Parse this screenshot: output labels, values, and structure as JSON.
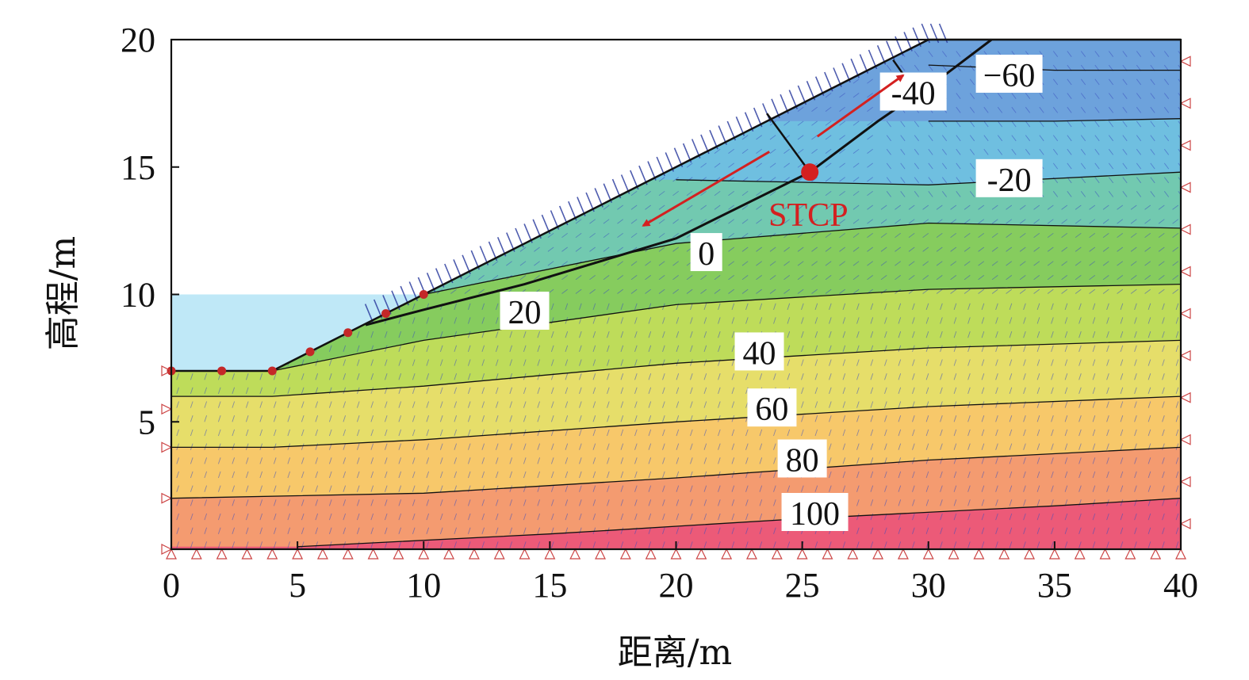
{
  "chart_data": {
    "type": "contour",
    "xlabel": "距离/m",
    "ylabel": "高程/m",
    "xlim": [
      0,
      40
    ],
    "ylim": [
      0,
      20
    ],
    "xticks": [
      0,
      5,
      10,
      15,
      20,
      25,
      30,
      35,
      40
    ],
    "yticks": [
      5,
      10,
      15,
      20
    ],
    "water_level": 10,
    "slope_surface": [
      [
        0,
        7
      ],
      [
        4,
        7
      ],
      [
        10,
        10
      ],
      [
        30,
        20
      ],
      [
        40,
        20
      ]
    ],
    "slip_surface": [
      [
        7.7,
        8.8
      ],
      [
        10,
        9.4
      ],
      [
        14,
        10.4
      ],
      [
        20,
        12.2
      ],
      [
        25.3,
        14.8
      ],
      [
        28,
        16.8
      ],
      [
        30.5,
        18.5
      ],
      [
        32.5,
        20
      ]
    ],
    "slices": [
      [
        [
          23.6,
          17.1
        ],
        [
          25.3,
          14.8
        ]
      ],
      [
        [
          28.6,
          19.2
        ],
        [
          29.6,
          17.8
        ]
      ]
    ],
    "nodes": [
      [
        0,
        7
      ],
      [
        2,
        7
      ],
      [
        4,
        7
      ],
      [
        5.5,
        7.75
      ],
      [
        7,
        8.5
      ],
      [
        8.5,
        9.25
      ],
      [
        10,
        10
      ]
    ],
    "contour_bands": [
      {
        "value": 100,
        "color": "#ec5a78"
      },
      {
        "value": 80,
        "color": "#f49b70"
      },
      {
        "value": 60,
        "color": "#f7c86a"
      },
      {
        "value": 40,
        "color": "#e6de6a"
      },
      {
        "value": 20,
        "color": "#bedc5a"
      },
      {
        "value": 0,
        "color": "#86cc5e"
      },
      {
        "value": -20,
        "color": "#72c9b0"
      },
      {
        "value": -40,
        "color": "#6fbfe0"
      },
      {
        "value": -60,
        "color": "#6da2dc"
      }
    ],
    "contour_lines": [
      {
        "label": "100",
        "points": [
          [
            5,
            0.1
          ],
          [
            15,
            0.6
          ],
          [
            25,
            1.2
          ],
          [
            35,
            1.7
          ],
          [
            40,
            2.0
          ]
        ]
      },
      {
        "label": "80",
        "points": [
          [
            0,
            2.0
          ],
          [
            10,
            2.2
          ],
          [
            20,
            2.8
          ],
          [
            30,
            3.5
          ],
          [
            40,
            4.0
          ]
        ]
      },
      {
        "label": "60",
        "points": [
          [
            0,
            4.0
          ],
          [
            4,
            4.0
          ],
          [
            10,
            4.3
          ],
          [
            20,
            5.0
          ],
          [
            30,
            5.6
          ],
          [
            40,
            6.0
          ]
        ]
      },
      {
        "label": "40",
        "points": [
          [
            0,
            6.0
          ],
          [
            4,
            6.0
          ],
          [
            10,
            6.4
          ],
          [
            20,
            7.3
          ],
          [
            30,
            7.9
          ],
          [
            40,
            8.2
          ]
        ]
      },
      {
        "label": "20",
        "points": [
          [
            4,
            7
          ],
          [
            10,
            8.2
          ],
          [
            20,
            9.6
          ],
          [
            30,
            10.2
          ],
          [
            40,
            10.4
          ]
        ]
      },
      {
        "label": "0",
        "points": [
          [
            10,
            10
          ],
          [
            20,
            12.0
          ],
          [
            30,
            12.8
          ],
          [
            40,
            12.6
          ]
        ]
      },
      {
        "label": "-20",
        "points": [
          [
            20,
            14.5
          ],
          [
            30,
            14.3
          ],
          [
            40,
            14.8
          ]
        ]
      },
      {
        "label": "-40",
        "points": [
          [
            30,
            16.8
          ],
          [
            35,
            16.8
          ],
          [
            40,
            16.9
          ]
        ]
      },
      {
        "label": "-60",
        "points": [
          [
            30,
            19.0
          ],
          [
            35,
            18.8
          ],
          [
            40,
            18.8
          ]
        ]
      }
    ],
    "contour_labels": [
      {
        "text": "100",
        "x": 25.5,
        "y": 1.4
      },
      {
        "text": "80",
        "x": 25.0,
        "y": 3.5
      },
      {
        "text": "60",
        "x": 23.8,
        "y": 5.5
      },
      {
        "text": "40",
        "x": 23.3,
        "y": 7.7
      },
      {
        "text": "20",
        "x": 14.0,
        "y": 9.3
      },
      {
        "text": "0",
        "x": 21.2,
        "y": 11.6
      },
      {
        "text": "-20",
        "x": 33.2,
        "y": 14.5
      },
      {
        "text": "-40",
        "x": 29.4,
        "y": 17.9
      },
      {
        "text": "−60",
        "x": 33.2,
        "y": 18.6
      }
    ],
    "stcp": {
      "label": "STCP",
      "x": 25.3,
      "y": 14.8
    },
    "arrows": [
      {
        "from": [
          23.7,
          15.6
        ],
        "to": [
          18.7,
          12.7
        ]
      },
      {
        "from": [
          25.6,
          16.2
        ],
        "to": [
          29.0,
          18.6
        ]
      }
    ]
  }
}
